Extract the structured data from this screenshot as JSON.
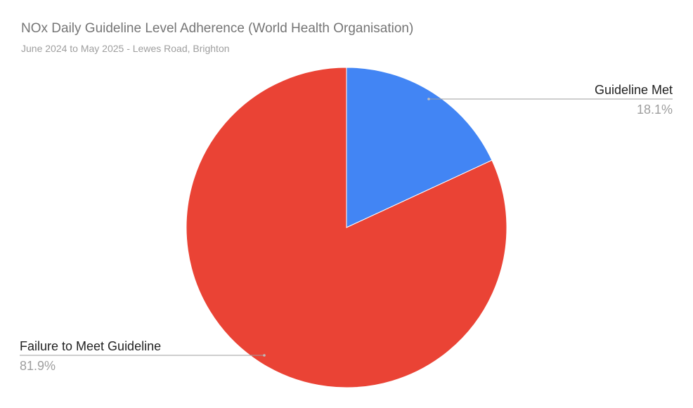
{
  "chart_data": {
    "type": "pie",
    "title": "NOx Daily Guideline Level Adherence (World Health Organisation)",
    "subtitle": "June 2024 to May 2025 - Lewes Road, Brighton",
    "slices": [
      {
        "label": "Guideline Met",
        "value": 18.1,
        "display": "18.1%",
        "color": "#4285f4"
      },
      {
        "label": "Failure to Meet Guideline",
        "value": 81.9,
        "display": "81.9%",
        "color": "#ea4335"
      }
    ],
    "start_angle": "12 o'clock, clockwise",
    "legend": "none (labels with leader lines)"
  }
}
